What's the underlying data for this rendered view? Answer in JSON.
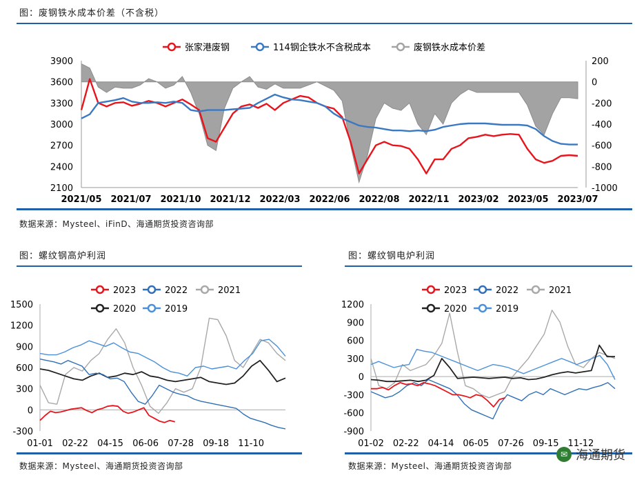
{
  "captions": {
    "top": "图：废钢铁水成本价差（不含税）",
    "bottom_left": "图：螺纹钢高炉利润",
    "bottom_right": "图：螺纹钢电炉利润"
  },
  "sources": {
    "top": "数据来源：Mysteel、iFinD、海通期货投资咨询部",
    "bottom_left": "数据来源：Mysteel、海通期货投资咨询部",
    "bottom_right": "数据来源：Mysteel、海通期货投资咨询部"
  },
  "watermark": {
    "text": "海通期货",
    "icon": "wechat-icon"
  },
  "chart_data": [
    {
      "id": "spread",
      "type": "line",
      "xlabels": [
        "2021/05",
        "2021/07",
        "2021/10",
        "2021/12",
        "2022/03",
        "2022/06",
        "2022/08",
        "2022/11",
        "2023/02",
        "2023/05",
        "2023/07"
      ],
      "ylim": [
        2100,
        3900
      ],
      "yticks": [
        "3900",
        "3600",
        "3300",
        "3000",
        "2700",
        "2400",
        "2100"
      ],
      "y2lim": [
        -1000,
        200
      ],
      "y2ticks": [
        "200",
        "0",
        "-200",
        "-400",
        "-600",
        "-800",
        "-1000"
      ],
      "legend": [
        "张家港废钢",
        "114钢企铁水不含税成本",
        "废钢铁水成本价差"
      ],
      "series": [
        {
          "name": "张家港废钢",
          "color": "#e8141c",
          "axis": "left",
          "values": [
            3200,
            3640,
            3300,
            3250,
            3300,
            3310,
            3260,
            3290,
            3330,
            3300,
            3250,
            3300,
            3350,
            3280,
            3200,
            2800,
            2750,
            2950,
            3150,
            3250,
            3280,
            3230,
            3290,
            3200,
            3300,
            3350,
            3400,
            3380,
            3300,
            3250,
            3220,
            3100,
            2750,
            2300,
            2500,
            2700,
            2750,
            2700,
            2690,
            2650,
            2500,
            2300,
            2500,
            2500,
            2650,
            2700,
            2800,
            2820,
            2850,
            2830,
            2850,
            2860,
            2850,
            2650,
            2500,
            2450,
            2480,
            2550,
            2560,
            2550
          ]
        },
        {
          "name": "114钢企铁水不含税成本",
          "color": "#3a78c2",
          "axis": "left",
          "values": [
            3080,
            3140,
            3300,
            3320,
            3340,
            3370,
            3320,
            3300,
            3300,
            3310,
            3300,
            3320,
            3300,
            3200,
            3180,
            3200,
            3200,
            3200,
            3210,
            3220,
            3230,
            3300,
            3360,
            3420,
            3380,
            3350,
            3340,
            3320,
            3300,
            3250,
            3150,
            3080,
            3030,
            2980,
            2960,
            2950,
            2930,
            2910,
            2910,
            2900,
            2910,
            2900,
            2920,
            2960,
            2980,
            3000,
            3010,
            3010,
            3010,
            3000,
            2990,
            2990,
            2990,
            2980,
            2930,
            2830,
            2760,
            2720,
            2710,
            2710
          ]
        },
        {
          "name": "废钢铁水成本价差",
          "color": "#a3a3a3",
          "axis": "right",
          "values": [
            170,
            130,
            -50,
            -100,
            -50,
            -60,
            -60,
            -30,
            30,
            0,
            -60,
            -30,
            50,
            -100,
            -300,
            -600,
            -650,
            -250,
            -60,
            0,
            50,
            -50,
            -70,
            -20,
            -60,
            -60,
            -60,
            -30,
            0,
            -40,
            -80,
            -180,
            -600,
            -950,
            -700,
            -350,
            -200,
            -250,
            -270,
            -200,
            -400,
            -500,
            -300,
            -400,
            -200,
            -120,
            -70,
            -100,
            -100,
            -100,
            -100,
            -100,
            -100,
            -220,
            -420,
            -500,
            -300,
            -150,
            -150,
            -160
          ]
        }
      ]
    },
    {
      "id": "bf-profit",
      "type": "line",
      "xlabels": [
        "01-01",
        "02-22",
        "04-15",
        "06-06",
        "07-28",
        "09-18",
        "11-10"
      ],
      "ylim": [
        -300,
        1500
      ],
      "yticks": [
        "1500",
        "1200",
        "900",
        "600",
        "300",
        "0",
        "-300"
      ],
      "legend": [
        "2023",
        "2022",
        "2021",
        "2020",
        "2019"
      ],
      "series": [
        {
          "name": "2023",
          "color": "#e8141c",
          "values": [
            -150,
            -80,
            -20,
            -40,
            -30,
            -10,
            10,
            20,
            30,
            -10,
            -40,
            0,
            20,
            50,
            60,
            50,
            -20,
            -50,
            -30,
            0,
            30,
            -80,
            -120,
            -160,
            -180,
            -150,
            -170
          ]
        },
        {
          "name": "2022",
          "color": "#2e6fb7",
          "values": [
            720,
            700,
            680,
            650,
            700,
            660,
            620,
            500,
            520,
            500,
            440,
            450,
            400,
            250,
            120,
            80,
            200,
            350,
            300,
            250,
            220,
            200,
            150,
            120,
            100,
            80,
            60,
            40,
            20,
            -60,
            -120,
            -150,
            -180,
            -220,
            -250,
            -270
          ]
        },
        {
          "name": "2021",
          "color": "#a8a8a8",
          "values": [
            350,
            100,
            80,
            500,
            600,
            550,
            700,
            800,
            1000,
            1150,
            950,
            600,
            350,
            50,
            -50,
            100,
            300,
            250,
            300,
            600,
            1300,
            1280,
            1050,
            700,
            600,
            800,
            1000,
            950,
            800,
            700
          ]
        },
        {
          "name": "2020",
          "color": "#222222",
          "values": [
            580,
            560,
            520,
            480,
            440,
            420,
            480,
            520,
            460,
            480,
            520,
            500,
            540,
            480,
            460,
            420,
            400,
            420,
            440,
            460,
            400,
            380,
            360,
            380,
            480,
            620,
            700,
            560,
            400,
            450
          ]
        },
        {
          "name": "2019",
          "color": "#4a90d9",
          "values": [
            800,
            780,
            780,
            820,
            880,
            920,
            980,
            940,
            900,
            950,
            880,
            820,
            800,
            740,
            680,
            600,
            540,
            520,
            480,
            600,
            620,
            580,
            600,
            620,
            580,
            700,
            800,
            980,
            1000,
            900,
            760
          ]
        }
      ]
    },
    {
      "id": "eaf-profit",
      "type": "line",
      "xlabels": [
        "01-02",
        "02-22",
        "04-14",
        "06-05",
        "07-26",
        "09-15",
        "11-12"
      ],
      "ylim": [
        -900,
        1200
      ],
      "yticks": [
        "1200",
        "900",
        "600",
        "300",
        "0",
        "-300",
        "-600",
        "-900"
      ],
      "legend": [
        "2023",
        "2022",
        "2021",
        "2020",
        "2019"
      ],
      "series": [
        {
          "name": "2023",
          "color": "#e8141c",
          "values": [
            -200,
            -200,
            -180,
            -220,
            -150,
            -100,
            -130,
            -120,
            -150,
            -100,
            -120,
            -150,
            -200,
            -250,
            -300,
            -300,
            -320,
            -350,
            -300,
            -320,
            -400,
            -500,
            -380,
            -350
          ]
        },
        {
          "name": "2022",
          "color": "#2e6fb7",
          "values": [
            -250,
            -300,
            -350,
            -320,
            -250,
            -150,
            -100,
            -150,
            -50,
            -100,
            -150,
            -200,
            -300,
            -450,
            -550,
            -600,
            -650,
            -700,
            -450,
            -300,
            -350,
            -400,
            -300,
            -250,
            -300,
            -200,
            -250,
            -300,
            -250,
            -200,
            -220,
            -180,
            -150,
            -100,
            -200
          ]
        },
        {
          "name": "2021",
          "color": "#a8a8a8",
          "values": [
            300,
            -150,
            -200,
            -100,
            200,
            100,
            150,
            200,
            350,
            550,
            1050,
            400,
            -150,
            -200,
            -300,
            -350,
            -300,
            -250,
            0,
            150,
            300,
            500,
            700,
            1100,
            900,
            500,
            200,
            150,
            300,
            400,
            350,
            300
          ]
        },
        {
          "name": "2020",
          "color": "#222222",
          "values": [
            -50,
            -60,
            -80,
            -80,
            -70,
            -60,
            -80,
            -60,
            20,
            300,
            150,
            -30,
            -20,
            -10,
            -20,
            -30,
            -20,
            -10,
            -30,
            -20,
            -50,
            -40,
            -10,
            30,
            60,
            80,
            60,
            80,
            100,
            520,
            330,
            330
          ]
        },
        {
          "name": "2019",
          "color": "#4a90d9",
          "values": [
            200,
            250,
            200,
            150,
            180,
            200,
            450,
            420,
            400,
            350,
            300,
            250,
            200,
            150,
            100,
            150,
            200,
            180,
            150,
            100,
            50,
            100,
            150,
            200,
            250,
            300,
            250,
            200,
            250,
            300,
            350,
            200,
            -50
          ]
        }
      ]
    }
  ]
}
